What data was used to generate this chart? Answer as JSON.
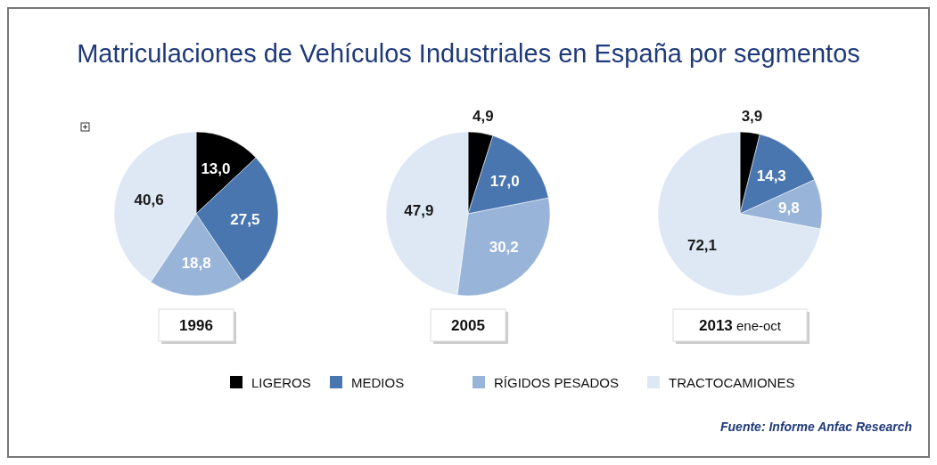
{
  "chart_data": [
    {
      "type": "pie",
      "title": "Matriculaciones de Vehículos Industriales en España por segmentos",
      "xlabel": "1996",
      "categories": [
        null,
        null,
        null,
        null
      ],
      "values": [
        13.0,
        27.5,
        18.8,
        40.6
      ],
      "colors": [
        "#000000",
        "#4a76b0",
        "#98b4d8",
        "#dde8f4"
      ],
      "value_labels": [
        "13,0",
        "27,5",
        "18,8",
        "40,6"
      ]
    },
    {
      "type": "pie",
      "xlabel": "2005",
      "categories": [
        "LIGEROS",
        "MEDIOS",
        "RÍGIDOS PESADOS",
        "TRACTOCAMIONES"
      ],
      "values": [
        4.9,
        17.0,
        30.2,
        47.9
      ],
      "colors": [
        "#000000",
        "#4a76b0",
        "#98b4d8",
        "#dde8f4"
      ],
      "value_labels": [
        "4,9",
        "17,0",
        "30,2",
        "47,9"
      ],
      "legend": "bottom"
    },
    {
      "type": "pie",
      "xlabel": "2013 ene-oct",
      "categories": [
        null,
        null,
        null,
        null
      ],
      "values": [
        3.9,
        14.3,
        9.8,
        72.1
      ],
      "colors": [
        "#000000",
        "#4a76b0",
        "#98b4d8",
        "#dde8f4"
      ],
      "value_labels": [
        "3,9",
        "14,3",
        "9,8",
        "72,1"
      ],
      "annotations": [
        "Fuente: Informe Anfac Research"
      ]
    }
  ]
}
